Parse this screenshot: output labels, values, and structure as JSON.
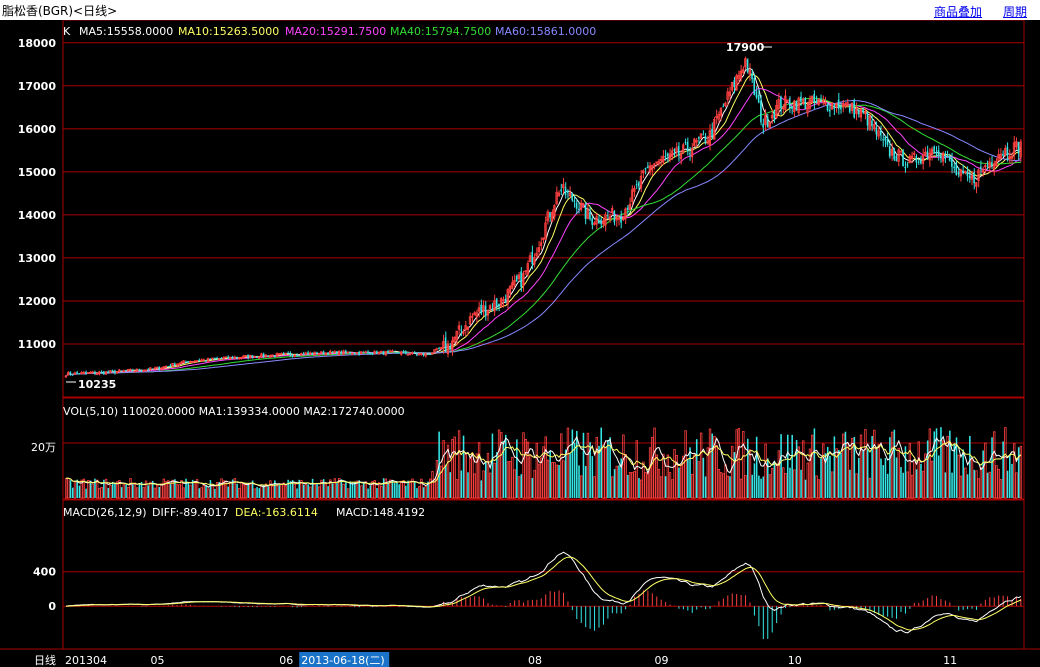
{
  "header": {
    "title": "脂松香(BGR)<日线>",
    "overlay_link": "商品叠加",
    "period_link": "周期"
  },
  "colors": {
    "background": "#000000",
    "frame": "#aa0000",
    "grid": "#aa0000",
    "up": "#ff4040",
    "down": "#35e6e6",
    "ma5": "#ffffff",
    "ma10": "#ffff66",
    "ma20": "#ff44ff",
    "ma40": "#33dd33",
    "ma60": "#8888ff",
    "label_white": "#ffffff",
    "date_highlight": "#1a73c8"
  },
  "chart_data": [
    {
      "type": "candlestick",
      "panel": "price",
      "legend_prefix": "K",
      "indicators": [
        {
          "name": "MA5",
          "text": "MA5:15558.0000"
        },
        {
          "name": "MA10",
          "text": "MA10:15263.5000"
        },
        {
          "name": "MA20",
          "text": "MA20:15291.7500"
        },
        {
          "name": "MA40",
          "text": "MA40:15794.7500"
        },
        {
          "name": "MA60",
          "text": "MA60:15861.0000"
        }
      ],
      "y_ticks": [
        "18000",
        "17000",
        "16000",
        "15000",
        "14000",
        "13000",
        "12000",
        "11000"
      ],
      "ylim": [
        10000,
        18250
      ],
      "high_label": "17900",
      "low_label": "10235",
      "close_path": [
        [
          0,
          10300
        ],
        [
          18,
          10340
        ],
        [
          40,
          10420
        ],
        [
          55,
          10600
        ],
        [
          85,
          10720
        ],
        [
          120,
          10800
        ],
        [
          150,
          10800
        ],
        [
          162,
          10750
        ],
        [
          172,
          10950
        ],
        [
          184,
          11700
        ],
        [
          196,
          12000
        ],
        [
          206,
          12550
        ],
        [
          214,
          13500
        ],
        [
          222,
          14600
        ],
        [
          230,
          14300
        ],
        [
          236,
          13900
        ],
        [
          250,
          14000
        ],
        [
          264,
          15200
        ],
        [
          276,
          15400
        ],
        [
          290,
          15850
        ],
        [
          306,
          17600
        ],
        [
          314,
          16100
        ],
        [
          322,
          16600
        ],
        [
          334,
          16600
        ],
        [
          350,
          16550
        ],
        [
          360,
          16300
        ],
        [
          370,
          15500
        ],
        [
          380,
          15200
        ],
        [
          392,
          15600
        ],
        [
          402,
          14900
        ],
        [
          408,
          14800
        ],
        [
          420,
          15450
        ],
        [
          430,
          15600
        ]
      ],
      "n_bars": 431
    },
    {
      "type": "bar",
      "panel": "volume",
      "legend": "VOL(5,10) 110020.0000 MA1:139334.0000 MA2:172740.0000",
      "y_ticks": [
        "20万"
      ]
    },
    {
      "type": "bar",
      "panel": "macd",
      "legend_name": "MACD(26,12,9)",
      "legend_diff": "DIFF:-89.4017",
      "legend_dea": "DEA:-163.6114",
      "legend_macd": "MACD:148.4192",
      "y_ticks": [
        "400",
        "0"
      ],
      "ylim": [
        -450,
        1000
      ]
    }
  ],
  "x_axis": {
    "label": "日线",
    "ticks": [
      {
        "text": "201304",
        "bar": 0
      },
      {
        "text": "05",
        "bar": 38
      },
      {
        "text": "06",
        "bar": 96
      },
      {
        "text": "08",
        "bar": 208
      },
      {
        "text": "09",
        "bar": 265
      },
      {
        "text": "10",
        "bar": 325
      },
      {
        "text": "11",
        "bar": 395
      }
    ],
    "highlight": {
      "text": "2013-06-18(二)",
      "bar": 123
    }
  }
}
